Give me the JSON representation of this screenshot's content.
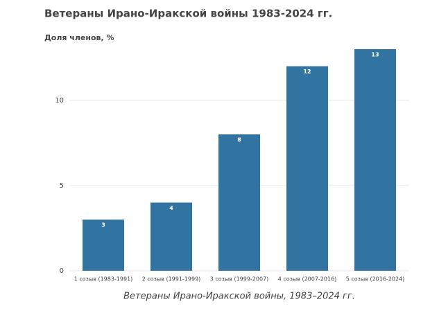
{
  "chart_data": {
    "type": "bar",
    "title": "Ветераны Ирано-Иракской войны 1983-2024 гг.",
    "y_label": "Доля членов, %",
    "caption": "Ветераны Ирано-Иракской войны, 1983–2024 гг.",
    "categories": [
      "1 созыв (1983-1991)",
      "2 созыв (1991-1999)",
      "3 созыв (1999-2007)",
      "4 созыв (2007-2016)",
      "5 созыв (2016-2024)"
    ],
    "values": [
      3,
      4,
      8,
      12,
      13
    ],
    "color": "#3274a1",
    "ylim": [
      0,
      13
    ],
    "yticks": [
      0,
      5,
      10
    ],
    "grid": true
  }
}
